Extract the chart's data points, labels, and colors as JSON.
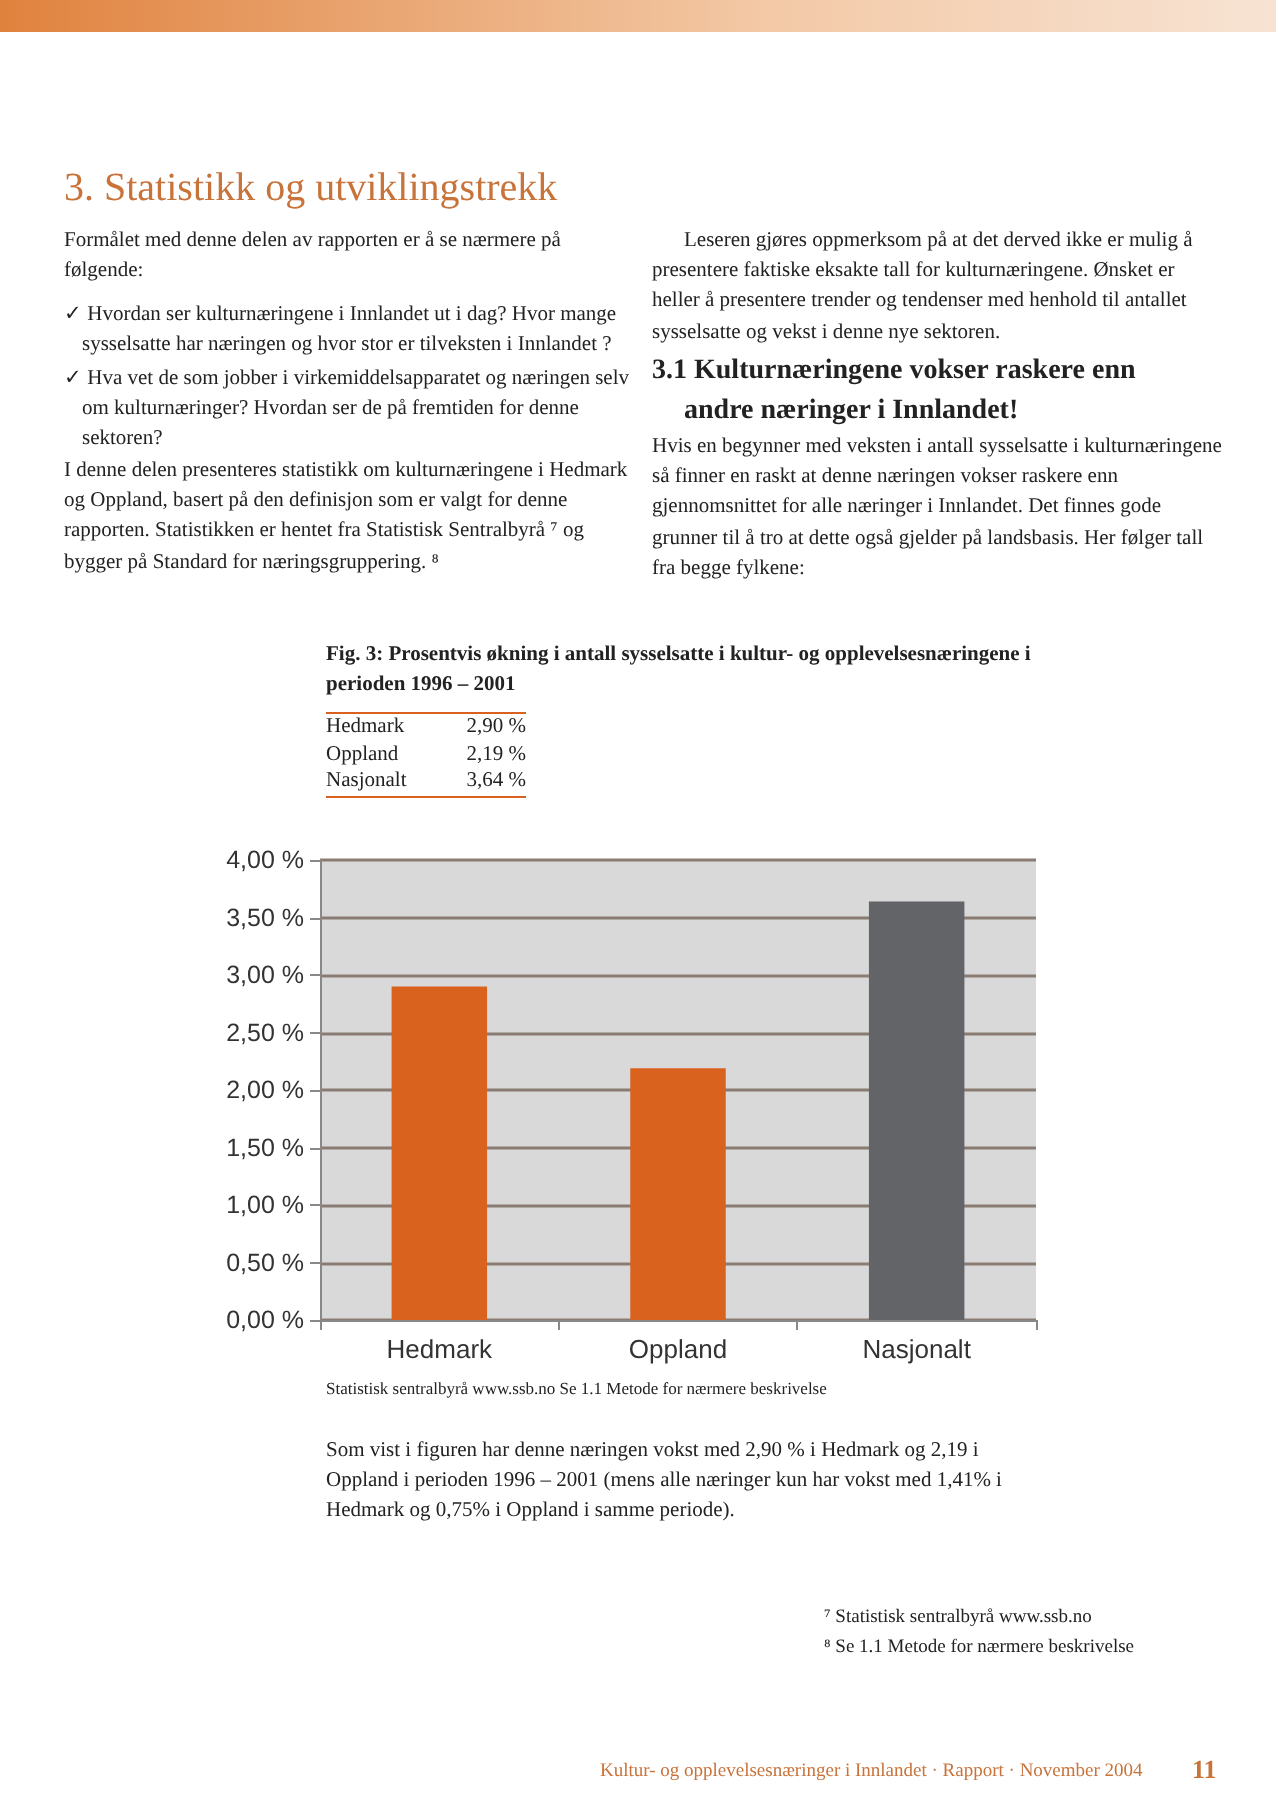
{
  "chart_data": {
    "type": "bar",
    "title": "Fig. 3: Prosentvis økning i antall sysselsatte i kultur- og opplevelsesnæringene i perioden 1996 – 2001",
    "categories": [
      "Hedmark",
      "Oppland",
      "Nasjonalt"
    ],
    "values": [
      2.9,
      2.19,
      3.64
    ],
    "colors": [
      "#d9621f",
      "#d9621f",
      "#636467"
    ],
    "ylim": [
      0,
      4
    ],
    "yticks": [
      {
        "value": 0,
        "label": "0,00 %"
      },
      {
        "value": 0.5,
        "label": "0,50 %"
      },
      {
        "value": 1,
        "label": "1,00 %"
      },
      {
        "value": 1.5,
        "label": "1,50 %"
      },
      {
        "value": 2,
        "label": "2,00 %"
      },
      {
        "value": 2.5,
        "label": "2,50 %"
      },
      {
        "value": 3,
        "label": "3,00 %"
      },
      {
        "value": 3.5,
        "label": "3,50 %"
      },
      {
        "value": 4,
        "label": "4,00 %"
      }
    ],
    "grid": "y",
    "annotations": [
      "3. Statistikk og utviklingstrekk",
      "Formålet med denne delen av rapporten er å se nærmere på følgende:",
      "✓ Hvordan ser kulturnæringene i Innlandet ut i dag? Hvor mange sysselsatte har næringen og hvor stor er tilveksten i Innlandet ?",
      "✓ Hva vet de som jobber i virkemiddelsapparatet og næringen selv om kulturnæringer? Hvordan ser de på fremtiden for denne sektoren?",
      "I denne delen presenteres statistikk om kulturnæringene i Hedmark og Oppland, basert på den definisjon som er valgt for denne rapporten. Statistikken er hentet fra Statistisk Sentralbyrå ⁷ og bygger på Standard for næringsgruppering. ⁸",
      "Leseren gjøres oppmerksom på at det derved ikke er mulig å presentere faktiske eksakte tall for kulturnæringene. Ønsket er heller å presentere trender og tendenser med henhold til antallet sysselsatte og vekst i denne nye sektoren.",
      "3.1 Kulturnæringene vokser raskere enn andre næringer i Innlandet!",
      "Hvis en begynner med veksten i antall sysselsatte i kulturnæringene så finner en raskt at denne næringen vokser raskere enn gjennomsnittet for alle næringer i Innlandet. Det finnes gode grunner til å tro at dette også gjelder på landsbasis. Her følger tall fra begge fylkene:",
      "Statistisk sentralbyrå www.ssb.no Se 1.1 Metode for nærmere beskrivelse",
      "Som vist i figuren har denne næringen vokst med 2,90 % i Hedmark og 2,19 i Oppland i perioden 1996 – 2001 (mens alle næringer kun har vokst med 1,41% i Hedmark og 0,75% i Oppland i samme periode).",
      "⁷ Statistisk sentralbyrå www.ssb.no",
      "⁸ Se 1.1 Metode for nærmere beskrivelse",
      "Kultur- og opplevelsesnæringer i Innlandet · Rapport · November 2004",
      "11",
      "Hedmark",
      "2,90 %",
      "Oppland",
      "2,19 %",
      "Nasjonalt",
      "3,64 %"
    ]
  }
}
